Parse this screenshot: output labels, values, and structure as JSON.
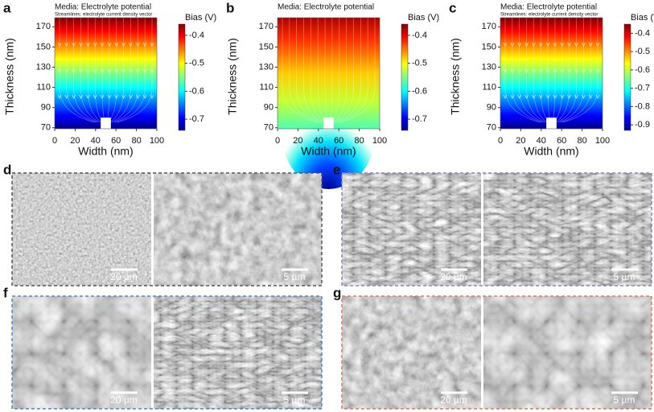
{
  "chart_data": [
    {
      "type": "field",
      "panel": "a",
      "title": "Media: Electrolyte potential",
      "subtitle": "Streamlines: electrolyte current density vector",
      "xlabel": "Width (nm)",
      "ylabel": "Thickness (nm)",
      "xlim": [
        0,
        100
      ],
      "xticks": [
        0,
        20,
        40,
        60,
        80,
        100
      ],
      "ylim": [
        69,
        179
      ],
      "yticks": [
        70,
        90,
        110,
        130,
        150,
        170
      ],
      "colorbar_label": "Bias (V)",
      "clim": [
        -0.74,
        -0.36
      ],
      "cticks": [
        -0.4,
        -0.5,
        -0.6,
        -0.7
      ],
      "colormap": "jet"
    },
    {
      "type": "field",
      "panel": "b",
      "title": "Media: Electrolyte potential",
      "xlabel": "Width (nm)",
      "ylabel": "Thickness (nm)",
      "xlim": [
        0,
        100
      ],
      "xticks": [
        0,
        20,
        40,
        60,
        80,
        100
      ],
      "ylim": [
        69,
        179
      ],
      "yticks": [
        70,
        90,
        110,
        130,
        150,
        170
      ],
      "colorbar_label": "Bias (V)",
      "clim": [
        -0.74,
        -0.36
      ],
      "cticks": [
        -0.4,
        -0.5,
        -0.6,
        -0.7
      ],
      "colormap": "jet"
    },
    {
      "type": "field",
      "panel": "c",
      "title": "Media: Electrolyte potential",
      "subtitle": "Streamlines: electrolyte current density vector",
      "xlabel": "Width (nm)",
      "ylabel": "Thickness (nm)",
      "xlim": [
        0,
        100
      ],
      "xticks": [
        0,
        20,
        40,
        60,
        80,
        100
      ],
      "ylim": [
        69,
        179
      ],
      "yticks": [
        70,
        90,
        110,
        130,
        150,
        170
      ],
      "colorbar_label": "Bias (V)",
      "clim": [
        -0.93,
        -0.35
      ],
      "cticks": [
        -0.4,
        -0.5,
        -0.6,
        -0.7,
        -0.8,
        -0.9
      ],
      "colormap": "jet"
    }
  ],
  "micrographs": [
    {
      "label": "d",
      "scale_bars": [
        "20 µm",
        "5 µm"
      ]
    },
    {
      "label": "e",
      "scale_bars": [
        "20 µm",
        "5 µm"
      ]
    },
    {
      "label": "f",
      "scale_bars": [
        "20 µm",
        "5 µm"
      ]
    },
    {
      "label": "g",
      "scale_bars": [
        "20 µm",
        "5 µm"
      ]
    }
  ]
}
